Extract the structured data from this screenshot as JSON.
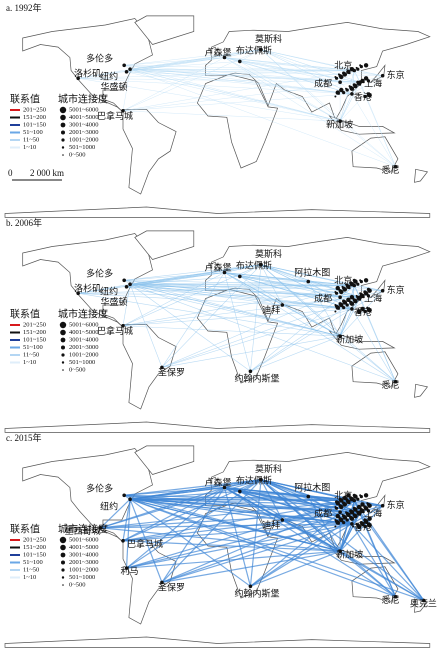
{
  "panels": [
    {
      "label": "a. 1992年",
      "cities": [
        "多伦多",
        "纽约",
        "洛杉矶",
        "华盛顿",
        "巴拿马城",
        "卢森堡",
        "布达佩斯",
        "莫斯科",
        "北京",
        "东京",
        "成都",
        "上海",
        "香港",
        "新加坡",
        "悉尼"
      ],
      "scale_bar": {
        "start": "0",
        "end": "2 000 km"
      }
    },
    {
      "label": "b. 2006年",
      "cities": [
        "多伦多",
        "纽约",
        "洛杉矶",
        "华盛顿",
        "巴拿马城",
        "圣保罗",
        "卢森堡",
        "布达佩斯",
        "莫斯科",
        "阿拉木图",
        "迪拜",
        "约翰内斯堡",
        "北京",
        "东京",
        "成都",
        "上海",
        "香港",
        "新加坡",
        "悉尼"
      ]
    },
    {
      "label": "c. 2015年",
      "cities": [
        "多伦多",
        "纽约",
        "墨西哥城",
        "巴拿马城",
        "利马",
        "圣保罗",
        "卢森堡",
        "布达佩斯",
        "莫斯科",
        "阿拉木图",
        "迪拜",
        "约翰内斯堡",
        "北京",
        "东京",
        "成都",
        "上海",
        "香港",
        "新加坡",
        "悉尼",
        "奥克兰"
      ]
    }
  ],
  "legend": {
    "link_title": "联系值",
    "link_classes": [
      "201~250",
      "151~200",
      "101~150",
      "51~100",
      "11~50",
      "1~10"
    ],
    "node_title": "城市连接度",
    "node_classes": [
      "5001~6000",
      "4001~5000",
      "3001~4000",
      "2001~3000",
      "1001~2000",
      "501~1000",
      "0~500"
    ]
  }
}
